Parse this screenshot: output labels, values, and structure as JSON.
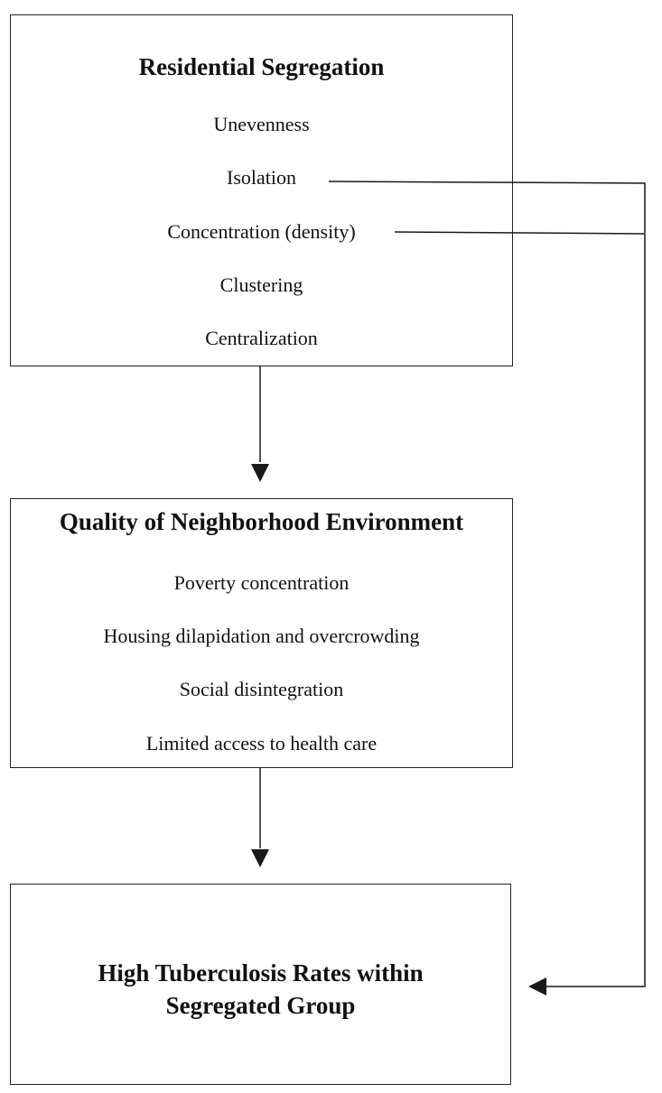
{
  "segregation": {
    "title": "Residential Segregation",
    "items": [
      "Unevenness",
      "Isolation",
      "Concentration (density)",
      "Clustering",
      "Centralization"
    ]
  },
  "environment": {
    "title": "Quality of Neighborhood Environment",
    "items": [
      "Poverty concentration",
      "Housing dilapidation and overcrowding",
      "Social disintegration",
      "Limited access to health care"
    ]
  },
  "outcome": {
    "title_line1": "High Tuberculosis Rates within",
    "title_line2": "Segregated Group"
  },
  "colors": {
    "line": "#1a1a1a",
    "box_border": "#222222",
    "text": "#111111"
  }
}
